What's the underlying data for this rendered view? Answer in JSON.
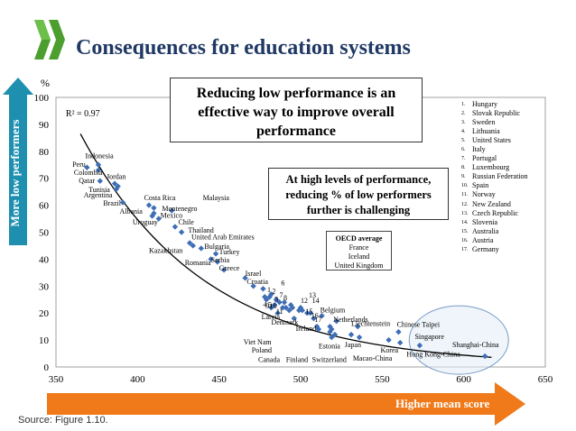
{
  "title": "Consequences for education systems",
  "source": "Source: Figure 1.10.",
  "left_arrow_label": "More low performers",
  "bottom_arrow_label": "Higher mean score",
  "callout_main": [
    "Reducing low performance is an",
    "effective way to improve overall",
    "performance"
  ],
  "callout_high": [
    "At high levels of performance,",
    "reducing % of low performers",
    "further is challenging"
  ],
  "oecd_box": {
    "heading": "OECD average",
    "lines": [
      "France",
      "Iceland",
      "United Kingdom"
    ]
  },
  "legend_numbers": [
    {
      "num": "1.",
      "name": "Hungary"
    },
    {
      "num": "2.",
      "name": "Slovak Republic"
    },
    {
      "num": "3.",
      "name": "Sweden"
    },
    {
      "num": "4.",
      "name": "Lithuania"
    },
    {
      "num": "5.",
      "name": "United States"
    },
    {
      "num": "6.",
      "name": "Italy"
    },
    {
      "num": "7.",
      "name": "Portugal"
    },
    {
      "num": "8.",
      "name": "Luxembourg"
    },
    {
      "num": "9.",
      "name": "Russian Federation"
    },
    {
      "num": "10.",
      "name": "Spain"
    },
    {
      "num": "11.",
      "name": "Norway"
    },
    {
      "num": "12.",
      "name": "New Zealand"
    },
    {
      "num": "13.",
      "name": "Czech Republic"
    },
    {
      "num": "14.",
      "name": "Slovenia"
    },
    {
      "num": "15.",
      "name": "Australia"
    },
    {
      "num": "16.",
      "name": "Austria"
    },
    {
      "num": "17.",
      "name": "Germany"
    }
  ],
  "colors": {
    "marker": "#3f6eb5",
    "accent": "#1f3864",
    "left_arrow": "#1f8fb0",
    "bottom_arrow": "#f07a1a",
    "fit": "#000000"
  },
  "chart_data": {
    "type": "scatter",
    "ylabel": "%",
    "xlabel": "",
    "xlim": [
      350,
      650
    ],
    "ylim": [
      0,
      100
    ],
    "xticks": [
      350,
      400,
      450,
      500,
      550,
      600,
      650
    ],
    "yticks": [
      0,
      10,
      20,
      30,
      40,
      50,
      60,
      70,
      80,
      90,
      100
    ],
    "grid": false,
    "annotation": "R² = 0.97",
    "fit_curve": true,
    "points": [
      {
        "x": 376,
        "y": 75,
        "label": "Indonesia"
      },
      {
        "x": 369,
        "y": 74,
        "label": "Peru"
      },
      {
        "x": 376,
        "y": 73,
        "label": "Colombia"
      },
      {
        "x": 377,
        "y": 69,
        "label": "Qatar"
      },
      {
        "x": 386,
        "y": 68,
        "label": "Jordan"
      },
      {
        "x": 388,
        "y": 67,
        "label": "Tunisia"
      },
      {
        "x": 387,
        "y": 66,
        "label": "Argentina"
      },
      {
        "x": 391,
        "y": 61,
        "label": "Brazil"
      },
      {
        "x": 407,
        "y": 60,
        "label": "Costa Rica"
      },
      {
        "x": 410,
        "y": 59,
        "label": "Albania"
      },
      {
        "x": 421,
        "y": 58,
        "label": "Malaysia"
      },
      {
        "x": 410,
        "y": 57,
        "label": "Montenegro"
      },
      {
        "x": 413,
        "y": 55,
        "label": "Mexico"
      },
      {
        "x": 409,
        "y": 56,
        "label": "Uruguay"
      },
      {
        "x": 423,
        "y": 52,
        "label": "Chile"
      },
      {
        "x": 427,
        "y": 50,
        "label": "Thailand"
      },
      {
        "x": 432,
        "y": 46,
        "label": "United Arab Emirates"
      },
      {
        "x": 434,
        "y": 45,
        "label": "Kazakhstan"
      },
      {
        "x": 439,
        "y": 44,
        "label": "Bulgaria"
      },
      {
        "x": 448,
        "y": 42,
        "label": "Turkey"
      },
      {
        "x": 449,
        "y": 39,
        "label": "Serbia"
      },
      {
        "x": 445,
        "y": 40,
        "label": "Romania"
      },
      {
        "x": 453,
        "y": 36,
        "label": "Greece"
      },
      {
        "x": 466,
        "y": 33,
        "label": "Israel"
      },
      {
        "x": 471,
        "y": 30,
        "label": "Croatia"
      },
      {
        "x": 477,
        "y": 29,
        "label": "Hungary"
      },
      {
        "x": 482,
        "y": 27,
        "label": "Slovak Republic"
      },
      {
        "x": 478,
        "y": 26,
        "label": "Sweden"
      },
      {
        "x": 479,
        "y": 25,
        "label": "Lithuania"
      },
      {
        "x": 481,
        "y": 26,
        "label": "United States"
      },
      {
        "x": 485,
        "y": 25,
        "label": "Italy"
      },
      {
        "x": 487,
        "y": 24,
        "label": "Portugal"
      },
      {
        "x": 490,
        "y": 24,
        "label": "Luxembourg"
      },
      {
        "x": 482,
        "y": 22,
        "label": "Russian Federation"
      },
      {
        "x": 484,
        "y": 23,
        "label": "Spain"
      },
      {
        "x": 489,
        "y": 22,
        "label": "Norway"
      },
      {
        "x": 500,
        "y": 22,
        "label": "New Zealand"
      },
      {
        "x": 499,
        "y": 21,
        "label": "Czech Republic"
      },
      {
        "x": 501,
        "y": 21,
        "label": "Slovenia"
      },
      {
        "x": 504,
        "y": 20,
        "label": "Australia"
      },
      {
        "x": 506,
        "y": 20,
        "label": "Austria"
      },
      {
        "x": 508,
        "y": 18,
        "label": "Germany"
      },
      {
        "x": 495,
        "y": 22,
        "label": "OECD average"
      },
      {
        "x": 491,
        "y": 22,
        "label": "France"
      },
      {
        "x": 493,
        "y": 21,
        "label": "Iceland"
      },
      {
        "x": 494,
        "y": 23,
        "label": "United Kingdom"
      },
      {
        "x": 486,
        "y": 20,
        "label": "Latvia"
      },
      {
        "x": 496,
        "y": 18,
        "label": "Denmark"
      },
      {
        "x": 510,
        "y": 15,
        "label": "Ireland"
      },
      {
        "x": 513,
        "y": 19,
        "label": "Belgium"
      },
      {
        "x": 522,
        "y": 17,
        "label": "Netherlands"
      },
      {
        "x": 535,
        "y": 15,
        "label": "Liechtenstein"
      },
      {
        "x": 560,
        "y": 13,
        "label": "Chinese Taipei"
      },
      {
        "x": 573,
        "y": 8,
        "label": "Singapore"
      },
      {
        "x": 613,
        "y": 4,
        "label": "Shanghai-China"
      },
      {
        "x": 561,
        "y": 9,
        "label": "Hong Kong-China"
      },
      {
        "x": 554,
        "y": 10,
        "label": "Korea"
      },
      {
        "x": 536,
        "y": 11,
        "label": "Macao-China"
      },
      {
        "x": 531,
        "y": 12,
        "label": "Japan"
      },
      {
        "x": 521,
        "y": 12,
        "label": "Estonia"
      },
      {
        "x": 519,
        "y": 11,
        "label": "Switzerland"
      },
      {
        "x": 519,
        "y": 14,
        "label": "Finland"
      },
      {
        "x": 518,
        "y": 13,
        "label": "Canada"
      },
      {
        "x": 511,
        "y": 14,
        "label": "Viet Nam"
      },
      {
        "x": 518,
        "y": 15,
        "label": "Poland"
      }
    ],
    "labels": [
      {
        "text": "Indonesia",
        "x": 368,
        "y": 77.5
      },
      {
        "text": "Peru",
        "x": 360,
        "y": 74.3
      },
      {
        "text": "Colombia",
        "x": 361,
        "y": 71.3
      },
      {
        "text": "Qatar",
        "x": 364,
        "y": 68.3
      },
      {
        "text": "Jordan",
        "x": 381,
        "y": 69.8
      },
      {
        "text": "Tunisia",
        "x": 370,
        "y": 64.8
      },
      {
        "text": "Argentina",
        "x": 367,
        "y": 62.8
      },
      {
        "text": "Brazil",
        "x": 379,
        "y": 59.8
      },
      {
        "text": "Albania",
        "x": 389,
        "y": 56.8
      },
      {
        "text": "Costa Rica",
        "x": 404,
        "y": 61.8
      },
      {
        "text": "Malaysia",
        "x": 440,
        "y": 61.8
      },
      {
        "text": "Montenegro",
        "x": 415,
        "y": 57.8
      },
      {
        "text": "Mexico",
        "x": 414,
        "y": 55.3
      },
      {
        "text": "Uruguay",
        "x": 397,
        "y": 52.8
      },
      {
        "text": "Chile",
        "x": 425,
        "y": 52.8
      },
      {
        "text": "Thailand",
        "x": 431,
        "y": 49.8
      },
      {
        "text": "United Arab Emirates",
        "x": 433,
        "y": 47.3
      },
      {
        "text": "Bulgaria",
        "x": 441,
        "y": 43.8
      },
      {
        "text": "Kazakhstan",
        "x": 407,
        "y": 42.3
      },
      {
        "text": "Turkey",
        "x": 450,
        "y": 41.8
      },
      {
        "text": "Serbia",
        "x": 445,
        "y": 38.8
      },
      {
        "text": "Romania",
        "x": 429,
        "y": 37.8
      },
      {
        "text": "Greece",
        "x": 450,
        "y": 35.8
      },
      {
        "text": "Israel",
        "x": 466,
        "y": 33.8
      },
      {
        "text": "Croatia",
        "x": 467,
        "y": 30.8
      },
      {
        "text": "Latvia",
        "x": 476,
        "y": 17.8
      },
      {
        "text": "Denmark",
        "x": 482,
        "y": 15.8
      },
      {
        "text": "Ireland",
        "x": 497,
        "y": 13.3
      },
      {
        "text": "Belgium",
        "x": 512,
        "y": 20.3
      },
      {
        "text": "Netherlands",
        "x": 520,
        "y": 16.8
      },
      {
        "text": "Liechtenstein",
        "x": 531,
        "y": 15.3
      },
      {
        "text": "Chinese Taipei",
        "x": 559,
        "y": 14.8
      },
      {
        "text": "Singapore",
        "x": 570,
        "y": 10.3
      },
      {
        "text": "Shanghai-China",
        "x": 593,
        "y": 7.3
      },
      {
        "text": "Hong Kong-China",
        "x": 565,
        "y": 3.8
      },
      {
        "text": "Korea",
        "x": 549,
        "y": 5.3
      },
      {
        "text": "Macao-China",
        "x": 532,
        "y": 2.3
      },
      {
        "text": "Japan",
        "x": 527,
        "y": 7.3
      },
      {
        "text": "Estonia",
        "x": 511,
        "y": 6.8
      },
      {
        "text": "Switzerland",
        "x": 507,
        "y": 1.8
      },
      {
        "text": "Finland",
        "x": 491,
        "y": 1.8
      },
      {
        "text": "Canada",
        "x": 474,
        "y": 1.8
      },
      {
        "text": "Viet Nam",
        "x": 465,
        "y": 8.3
      },
      {
        "text": "Poland",
        "x": 470,
        "y": 5.3
      },
      {
        "text": "1",
        "x": 479.5,
        "y": 27.8
      },
      {
        "text": "2",
        "x": 482.5,
        "y": 27.3
      },
      {
        "text": "3",
        "x": 484,
        "y": 24.3
      },
      {
        "text": "4",
        "x": 477,
        "y": 22.3
      },
      {
        "text": "5",
        "x": 480,
        "y": 22.3
      },
      {
        "text": "6",
        "x": 488,
        "y": 30.3
      },
      {
        "text": "7",
        "x": 487,
        "y": 25.8
      },
      {
        "text": "8",
        "x": 489.5,
        "y": 24.8
      },
      {
        "text": "9",
        "x": 478.5,
        "y": 21.8
      },
      {
        "text": "10",
        "x": 481,
        "y": 21.8
      },
      {
        "text": "11",
        "x": 485,
        "y": 19.8
      },
      {
        "text": "12",
        "x": 500,
        "y": 23.8
      },
      {
        "text": "13",
        "x": 505,
        "y": 25.8
      },
      {
        "text": "14",
        "x": 507,
        "y": 23.8
      },
      {
        "text": "15",
        "x": 503,
        "y": 19.8
      },
      {
        "text": "16",
        "x": 506.5,
        "y": 18.3
      },
      {
        "text": "17",
        "x": 508.5,
        "y": 16.8
      }
    ]
  }
}
